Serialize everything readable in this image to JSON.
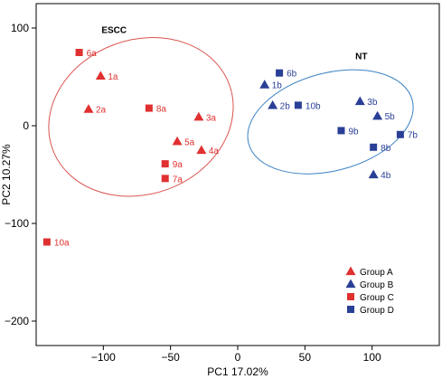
{
  "chart_data": {
    "type": "scatter",
    "title": "",
    "xlabel": "PC1 17.02%",
    "ylabel": "PC2 10.27%",
    "xlim": [
      -150,
      150
    ],
    "ylim": [
      -225,
      125
    ],
    "xticks": [
      -100,
      -50,
      0,
      50,
      100
    ],
    "yticks": [
      100,
      0,
      -100,
      -200
    ],
    "xtick_labels": [
      "−100",
      "−50",
      "0",
      "50",
      "100"
    ],
    "ytick_labels": [
      "100",
      "0",
      "−100",
      "−200"
    ],
    "grid": false,
    "legend_position": "bottom-right",
    "groups": [
      {
        "name": "Group A",
        "shape": "triangle",
        "color": "#e03030"
      },
      {
        "name": "Group B",
        "shape": "triangle",
        "color": "#2a3f96"
      },
      {
        "name": "Group C",
        "shape": "square",
        "color": "#e03030"
      },
      {
        "name": "Group D",
        "shape": "square",
        "color": "#2a3f96"
      }
    ],
    "points": [
      {
        "label": "1a",
        "x": -102,
        "y": 51,
        "group": 0
      },
      {
        "label": "2a",
        "x": -111,
        "y": 17,
        "group": 0
      },
      {
        "label": "3a",
        "x": -29,
        "y": 9,
        "group": 0
      },
      {
        "label": "4a",
        "x": -27,
        "y": -25,
        "group": 0
      },
      {
        "label": "5a",
        "x": -45,
        "y": -16,
        "group": 0
      },
      {
        "label": "6a",
        "x": -118,
        "y": 75,
        "group": 2
      },
      {
        "label": "7a",
        "x": -54,
        "y": -54,
        "group": 2
      },
      {
        "label": "8a",
        "x": -66,
        "y": 18,
        "group": 2
      },
      {
        "label": "9a",
        "x": -54,
        "y": -39,
        "group": 2
      },
      {
        "label": "10a",
        "x": -142,
        "y": -119,
        "group": 2
      },
      {
        "label": "1b",
        "x": 20,
        "y": 42,
        "group": 1
      },
      {
        "label": "2b",
        "x": 26,
        "y": 21,
        "group": 1
      },
      {
        "label": "3b",
        "x": 91,
        "y": 25,
        "group": 1
      },
      {
        "label": "4b",
        "x": 101,
        "y": -50,
        "group": 1
      },
      {
        "label": "5b",
        "x": 104,
        "y": 10,
        "group": 1
      },
      {
        "label": "6b",
        "x": 31,
        "y": 54,
        "group": 3
      },
      {
        "label": "7b",
        "x": 121,
        "y": -9,
        "group": 3
      },
      {
        "label": "8b",
        "x": 101,
        "y": -22,
        "group": 3
      },
      {
        "label": "9b",
        "x": 77,
        "y": -5,
        "group": 3
      },
      {
        "label": "10b",
        "x": 45,
        "y": 21,
        "group": 3
      }
    ],
    "ellipses": [
      {
        "label": "ESCC",
        "color": "#d9534f",
        "cx": -72,
        "cy": 9,
        "rx": 70,
        "ry": 79,
        "angle_deg": -20
      },
      {
        "label": "NT",
        "color": "#3b82c4",
        "cx": 69,
        "cy": 4,
        "rx": 63,
        "ry": 50,
        "angle_deg": -15
      }
    ]
  }
}
